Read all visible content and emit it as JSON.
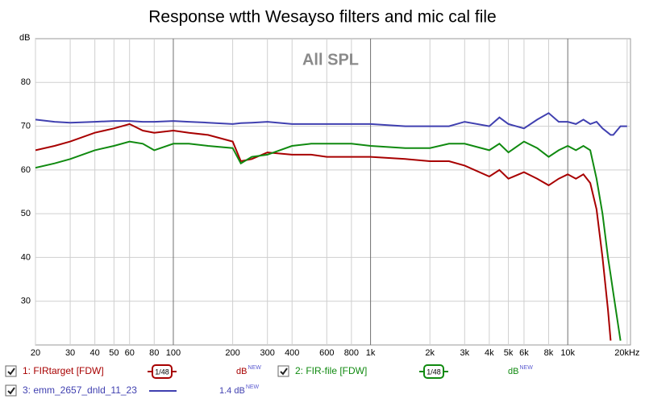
{
  "chart_data": {
    "type": "line",
    "title": "Response wtth Wesayso filters and mic cal file",
    "y_label": "dB",
    "annotation": "All SPL",
    "xlog": true,
    "grid": true,
    "xlim": [
      20,
      20800
    ],
    "ylim": [
      20,
      90
    ],
    "yticks": [
      30,
      40,
      50,
      60,
      70,
      80
    ],
    "xticks": [
      20,
      30,
      40,
      50,
      60,
      80,
      100,
      200,
      300,
      400,
      600,
      800,
      {
        "value": 1000,
        "label": "1k"
      },
      {
        "value": 2000,
        "label": "2k"
      },
      {
        "value": 3000,
        "label": "3k"
      },
      {
        "value": 4000,
        "label": "4k"
      },
      {
        "value": 5000,
        "label": "5k"
      },
      {
        "value": 6000,
        "label": "6k"
      },
      {
        "value": 8000,
        "label": "8k"
      },
      {
        "value": 10000,
        "label": "10k"
      },
      {
        "value": 20000,
        "label": "20kHz"
      }
    ],
    "x": [
      20,
      25,
      30,
      40,
      50,
      60,
      70,
      80,
      100,
      120,
      150,
      200,
      220,
      250,
      300,
      400,
      500,
      600,
      800,
      1000,
      1500,
      2000,
      2500,
      3000,
      4000,
      4500,
      5000,
      6000,
      7000,
      8000,
      9000,
      10000,
      11000,
      12000,
      13000,
      14000,
      15000,
      16000,
      16500,
      17000,
      18500,
      19000,
      20000
    ],
    "series": [
      {
        "name": "1: FIRtarget [FDW]",
        "color": "#a80000",
        "smoothing": "1/48",
        "offset_label": "dB",
        "badge": "NEW",
        "values": [
          64.5,
          65.5,
          66.5,
          68.5,
          69.5,
          70.5,
          69,
          68.5,
          69,
          68.5,
          68,
          66.5,
          62,
          62.5,
          64,
          63.5,
          63.5,
          63,
          63,
          63,
          62.5,
          62,
          62,
          61,
          58.5,
          60,
          58,
          59.5,
          58,
          56.5,
          58,
          59,
          58,
          59,
          57,
          51,
          40,
          28,
          21,
          null,
          null,
          null,
          null
        ]
      },
      {
        "name": "2: FIR-file [FDW]",
        "color": "#108a10",
        "smoothing": "1/48",
        "offset_label": "dB",
        "badge": "NEW",
        "values": [
          60.5,
          61.5,
          62.5,
          64.5,
          65.5,
          66.5,
          66,
          64.5,
          66,
          66,
          65.5,
          65,
          61.5,
          63,
          63.5,
          65.5,
          66,
          66,
          66,
          65.5,
          65,
          65,
          66,
          66,
          64.5,
          66,
          64,
          66.5,
          65,
          63,
          64.5,
          65.5,
          64.5,
          65.5,
          64.5,
          58,
          50,
          40,
          36,
          32,
          21,
          null,
          null
        ]
      },
      {
        "name": "3: emm_2657_dnld_11_23",
        "color": "#4040b0",
        "offset_label": "1.4 dB",
        "badge": "NEW",
        "values": [
          71.5,
          71,
          70.8,
          71,
          71.2,
          71.2,
          71,
          71,
          71.2,
          71,
          70.8,
          70.5,
          70.7,
          70.8,
          71,
          70.5,
          70.5,
          70.5,
          70.5,
          70.5,
          70,
          70,
          70,
          71,
          70,
          72,
          70.5,
          69.5,
          71.5,
          73,
          71,
          71,
          70.5,
          71.5,
          70.5,
          71,
          69.5,
          68.5,
          68,
          68,
          70,
          70,
          70
        ]
      }
    ]
  }
}
